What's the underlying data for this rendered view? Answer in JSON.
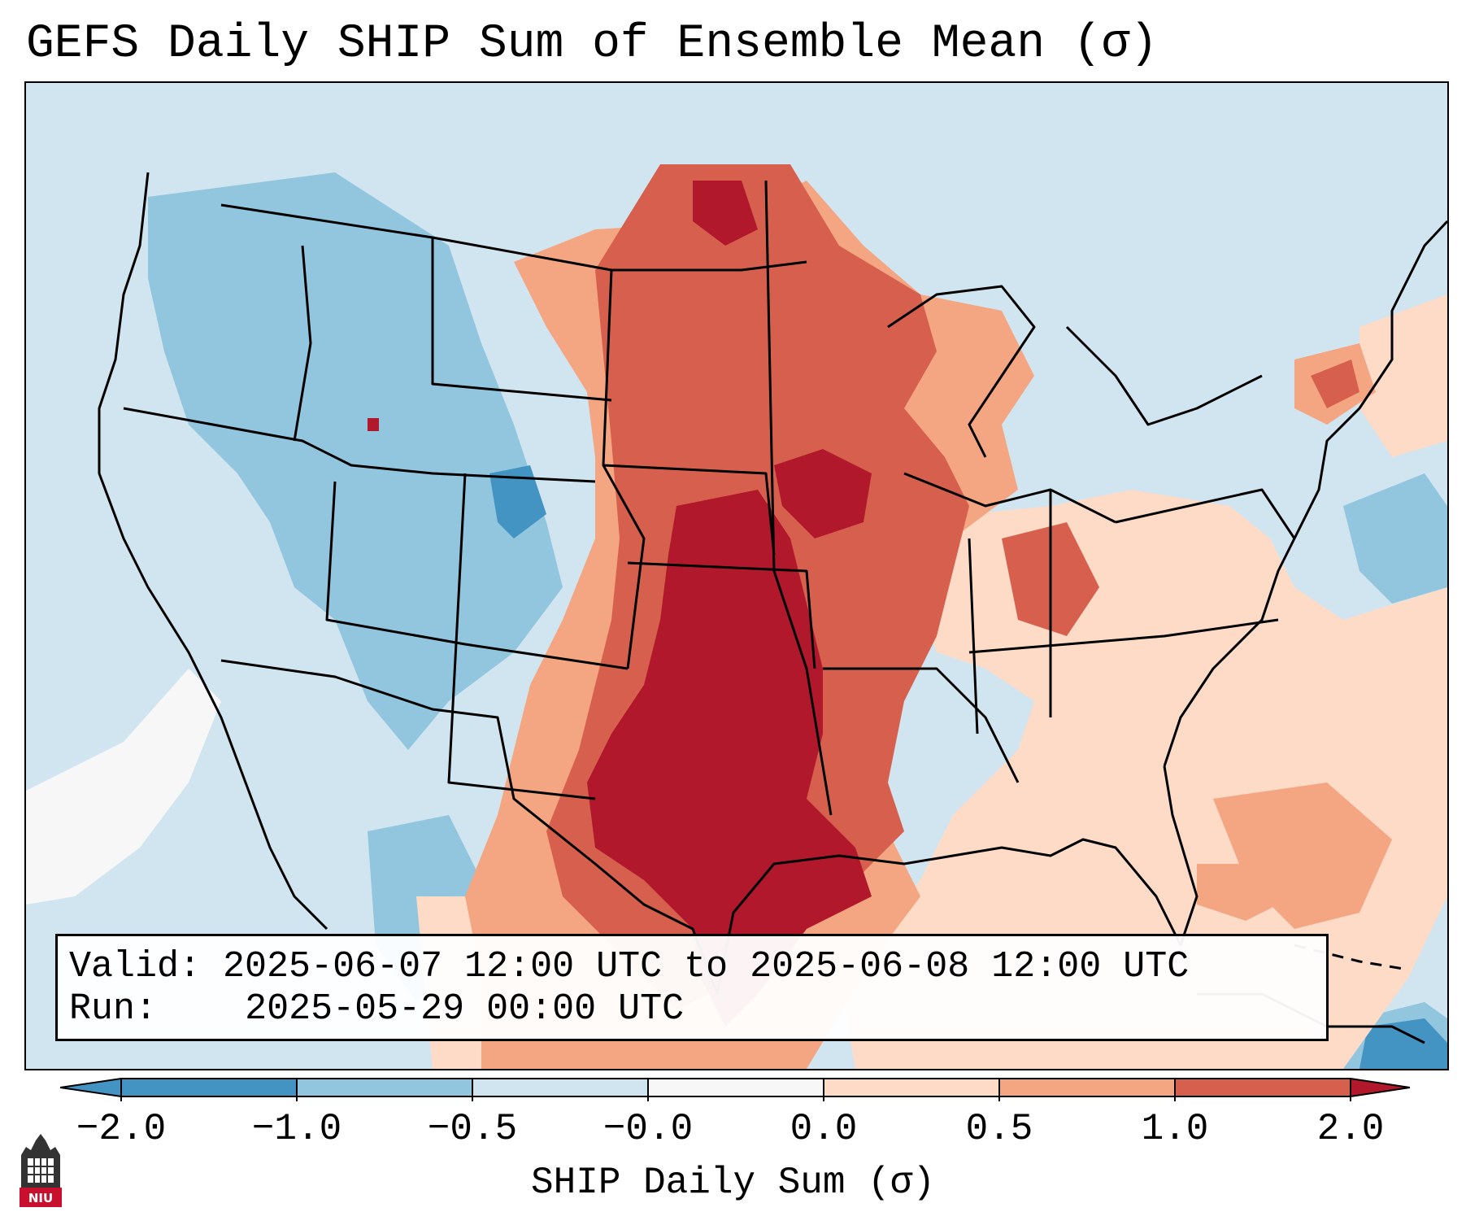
{
  "title": "GEFS Daily SHIP Sum of Ensemble Mean (σ)",
  "info": {
    "valid_label": "Valid:",
    "valid_value": "2025-06-07 12:00 UTC to 2025-06-08 12:00 UTC",
    "run_label": "Run:",
    "run_value": "2025-05-29 00:00 UTC"
  },
  "colorbar": {
    "label": "SHIP Daily Sum (σ)",
    "ticks": [
      "−2.0",
      "−1.0",
      "−0.5",
      "−0.0",
      "0.0",
      "0.5",
      "1.0",
      "2.0"
    ],
    "colors": {
      "extend_low": "#4393c3",
      "bin_minus2_minus1": "#4393c3",
      "bin_minus1_minus05": "#92c5de",
      "bin_minus05_0": "#d1e5f0",
      "bin_0_0": "#f7f7f7",
      "bin_0_05": "#fddbc7",
      "bin_05_1": "#f4a582",
      "bin_1_2": "#d6604d",
      "extend_high": "#b2182b"
    }
  },
  "map_regions": [
    {
      "name": "northern-plains-anomaly",
      "category": "1.0 to 2.0",
      "color": "#d6604d"
    },
    {
      "name": "southern-plains-core",
      "category": "> 2.0",
      "color": "#b2182b"
    },
    {
      "name": "great-lakes-anomaly",
      "category": "0.5 to 1.0",
      "color": "#f4a582"
    },
    {
      "name": "southeast-anomaly",
      "category": "0.0 to 0.5",
      "color": "#fddbc7"
    },
    {
      "name": "west-anomaly",
      "category": "-1.0 to -0.5",
      "color": "#92c5de"
    },
    {
      "name": "colorado-minimum",
      "category": "-2.0 to -1.0",
      "color": "#4393c3"
    }
  ],
  "logo": {
    "text": "NIU"
  }
}
